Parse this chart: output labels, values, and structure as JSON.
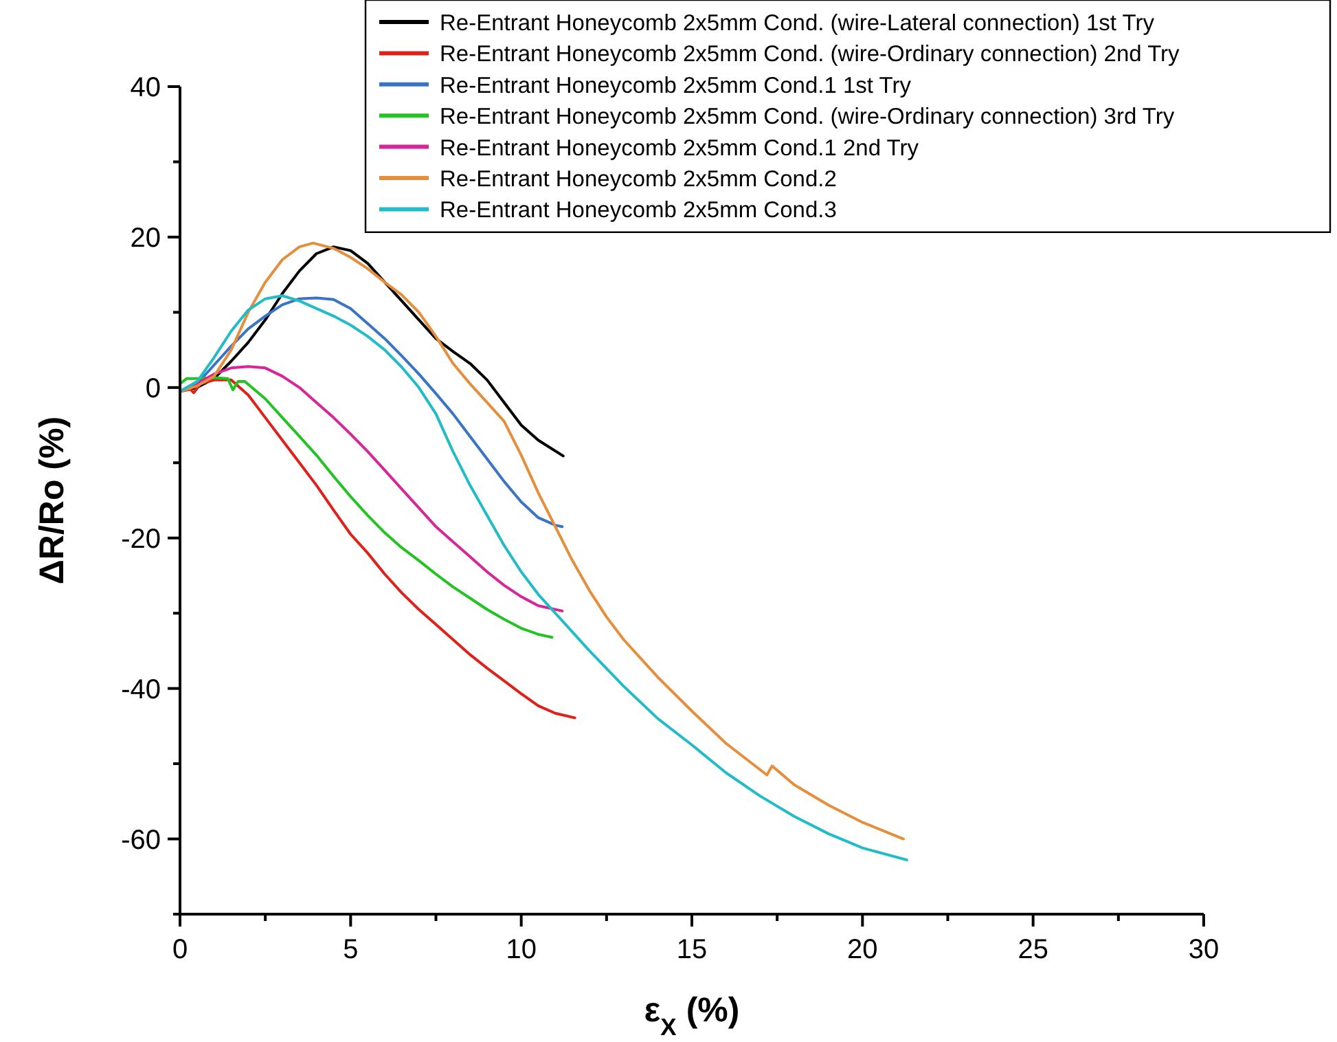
{
  "chart_data": {
    "type": "line",
    "xlabel": "ε$_{X}$ (%)",
    "ylabel": "ΔR/Ro (%)",
    "xlim": [
      0,
      30
    ],
    "ylim": [
      -70,
      40
    ],
    "xticks": [
      0,
      {
        "value": 2.5,
        "label": null
      },
      5,
      {
        "value": 7.5,
        "label": null
      },
      10,
      {
        "value": 12.5,
        "label": null
      },
      15,
      {
        "value": 17.5,
        "label": null
      },
      20,
      {
        "value": 22.5,
        "label": null
      },
      25,
      {
        "value": 27.5,
        "label": null
      },
      30
    ],
    "yticks": [
      {
        "value": -70,
        "label": null
      },
      -60,
      {
        "value": -50,
        "label": null
      },
      -40,
      {
        "value": -30,
        "label": null
      },
      -20,
      {
        "value": -10,
        "label": null
      },
      0,
      {
        "value": 10,
        "label": null
      },
      20,
      {
        "value": 30,
        "label": null
      },
      40
    ],
    "grid": false,
    "legend": "top right",
    "marker": "none",
    "line_style": "solid",
    "series": [
      {
        "name": "Re-Entrant Honeycomb 2x5mm Cond. (wire-Lateral connection) 1st Try",
        "color": "#000000",
        "x": [
          0,
          0.5,
          1,
          1.5,
          2,
          2.5,
          3,
          3.5,
          4,
          4.5,
          5,
          5.5,
          6,
          6.5,
          7,
          7.5,
          8,
          8.5,
          9,
          9.5,
          10,
          10.5,
          11.23
        ],
        "values": [
          -0.5,
          0,
          1.2,
          3.5,
          6,
          9,
          12.5,
          15.5,
          17.8,
          18.7,
          18.2,
          16.5,
          14,
          11.5,
          9,
          6.5,
          4.8,
          3.2,
          1,
          -2,
          -5,
          -7,
          -9.1
        ]
      },
      {
        "name": "Re-Entrant Honeycomb 2x5mm Cond. (wire-Ordinary connection) 2nd Try",
        "color": "#e0201b",
        "x": [
          0,
          0.3,
          0.4,
          0.6,
          1,
          1.5,
          2,
          2.5,
          3,
          3.5,
          4,
          4.5,
          5,
          5.5,
          6,
          6.5,
          7,
          7.5,
          8,
          8.5,
          9,
          9.5,
          10,
          10.5,
          11,
          11.57
        ],
        "values": [
          -0.5,
          -0.2,
          -0.7,
          0.5,
          1,
          1,
          -1,
          -4,
          -7,
          -10,
          -13,
          -16.3,
          -19.5,
          -22,
          -24.8,
          -27.3,
          -29.5,
          -31.5,
          -33.5,
          -35.5,
          -37.3,
          -39,
          -40.7,
          -42.3,
          -43.3,
          -43.9
        ]
      },
      {
        "name": "Re-Entrant Honeycomb 2x5mm Cond.1 1st Try",
        "color": "#3a74c4",
        "x": [
          0,
          0.5,
          1,
          1.5,
          2,
          2.5,
          3,
          3.5,
          4,
          4.5,
          5,
          5.5,
          6,
          6.5,
          7,
          7.5,
          8,
          8.5,
          9,
          9.5,
          10,
          10.5,
          11,
          11.2
        ],
        "values": [
          -0.5,
          0.5,
          3,
          5.5,
          7.8,
          9.5,
          11,
          11.8,
          11.9,
          11.7,
          10.5,
          8.5,
          6.5,
          4.2,
          1.8,
          -0.8,
          -3.5,
          -6.5,
          -9.5,
          -12.5,
          -15.2,
          -17.3,
          -18.3,
          -18.5
        ]
      },
      {
        "name": "Re-Entrant Honeycomb 2x5mm Cond. (wire-Ordinary connection) 3rd Try",
        "color": "#22c322",
        "x": [
          0,
          0.2,
          0.5,
          1,
          1.4,
          1.55,
          1.7,
          1.9,
          2.5,
          3,
          3.5,
          4,
          4.5,
          5,
          5.5,
          6,
          6.5,
          7,
          7.5,
          8,
          8.5,
          9,
          9.5,
          10,
          10.5,
          10.9
        ],
        "values": [
          0.5,
          1.2,
          1.2,
          1.3,
          1.2,
          -0.3,
          0.8,
          0.8,
          -1.5,
          -4,
          -6.5,
          -9,
          -11.8,
          -14.5,
          -17,
          -19.3,
          -21.3,
          -23,
          -24.8,
          -26.5,
          -28,
          -29.5,
          -30.8,
          -32,
          -32.8,
          -33.2
        ]
      },
      {
        "name": "Re-Entrant Honeycomb 2x5mm Cond.1 2nd Try",
        "color": "#d6269a",
        "x": [
          0,
          0.5,
          1,
          1.5,
          2,
          2.5,
          3,
          3.5,
          4,
          4.5,
          5,
          5.5,
          6,
          6.5,
          7,
          7.5,
          8,
          8.5,
          9,
          9.5,
          10,
          10.5,
          11.2
        ],
        "values": [
          -0.5,
          0.5,
          1.8,
          2.6,
          2.8,
          2.6,
          1.5,
          0,
          -2,
          -4,
          -6.2,
          -8.5,
          -11,
          -13.5,
          -16,
          -18.5,
          -20.5,
          -22.5,
          -24.5,
          -26.3,
          -27.8,
          -29,
          -29.7
        ]
      },
      {
        "name": "Re-Entrant Honeycomb 2x5mm Cond.2",
        "color": "#e58e3c",
        "x": [
          0,
          0.5,
          1,
          1.5,
          2,
          2.5,
          3,
          3.5,
          3.9,
          4.5,
          5,
          5.5,
          6,
          6.5,
          7,
          7.5,
          8,
          8.5,
          9,
          9.5,
          10,
          10.5,
          11,
          11.5,
          12,
          12.5,
          13,
          14,
          15,
          16,
          17.2,
          17.35,
          18,
          19,
          20,
          21.2
        ],
        "values": [
          -0.5,
          0.2,
          1.5,
          5,
          10,
          14,
          17,
          18.7,
          19.2,
          18.5,
          17.3,
          15.8,
          14,
          12.3,
          10,
          6.8,
          3.2,
          0.5,
          -2,
          -4.5,
          -9,
          -14,
          -18.5,
          -23,
          -27,
          -30.5,
          -33.5,
          -38.5,
          -43,
          -47.3,
          -51.5,
          -50.3,
          -52.8,
          -55.5,
          -57.8,
          -60
        ]
      },
      {
        "name": "Re-Entrant Honeycomb 2x5mm Cond.3",
        "color": "#22bcc8",
        "x": [
          0,
          0.5,
          1,
          1.5,
          2,
          2.5,
          3,
          3.5,
          4,
          4.5,
          5,
          5.5,
          6,
          6.5,
          7,
          7.5,
          8,
          8.5,
          9,
          9.5,
          10,
          10.5,
          11,
          12,
          13,
          14,
          15,
          16,
          17,
          18,
          19,
          20,
          21.3
        ],
        "values": [
          -0.5,
          0.8,
          4,
          7.5,
          10.3,
          11.8,
          12.2,
          11.5,
          10.5,
          9.5,
          8.3,
          6.8,
          5,
          2.7,
          0,
          -3.5,
          -8.5,
          -13,
          -17,
          -21,
          -24.5,
          -27.5,
          -30,
          -35,
          -39.7,
          -44,
          -47.5,
          -51.2,
          -54.3,
          -57,
          -59.3,
          -61.2,
          -62.8
        ]
      }
    ]
  }
}
